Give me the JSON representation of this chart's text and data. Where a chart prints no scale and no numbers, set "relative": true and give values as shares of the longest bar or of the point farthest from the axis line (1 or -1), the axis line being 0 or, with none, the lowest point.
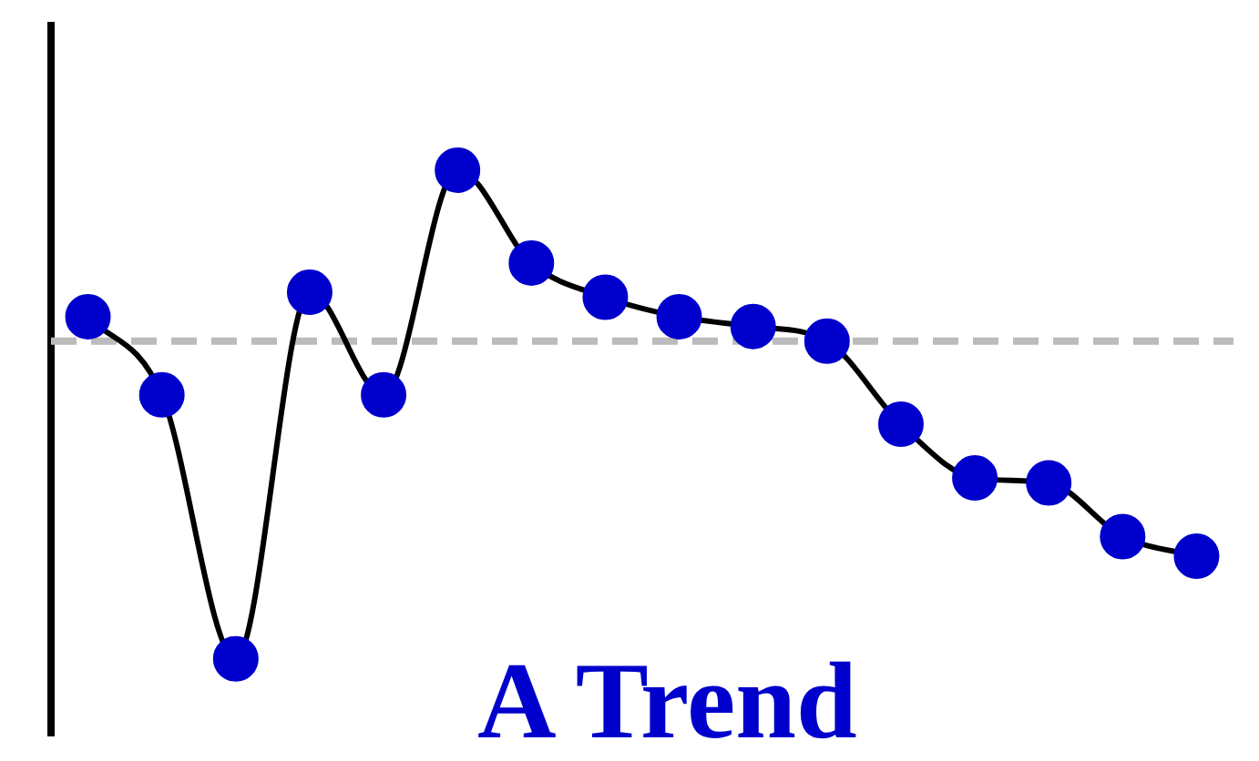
{
  "chart_data": {
    "type": "line",
    "title": "A Trend",
    "relative": true,
    "categories": [
      null,
      null,
      null,
      null,
      null,
      null,
      null,
      null,
      null,
      null,
      null,
      null,
      null,
      null,
      null,
      null
    ],
    "series": [
      {
        "color": "#000000",
        "colors": [
          "#0000cc",
          "#0000cc",
          "#0000cc",
          "#0000cc",
          "#0000cc",
          "#0000cc",
          "#0000cc",
          "#0000cc",
          "#0000cc",
          "#0000cc",
          "#0000cc",
          "#0000cc",
          "#0000cc",
          "#0000cc",
          "#0000cc",
          "#0000cc"
        ],
        "values": [
          0.7,
          0.54,
          0,
          0.75,
          0.54,
          1,
          0.81,
          0.74,
          0.7,
          0.68,
          0.65,
          0.48,
          0.37,
          0.36,
          0.25,
          0.21
        ]
      }
    ],
    "ref_lines": [
      {
        "axis": "y",
        "value": 0.65,
        "color": "#bbbbbb",
        "line_style": "dashed"
      }
    ],
    "marker": "circle",
    "grid": false,
    "legend": false
  }
}
